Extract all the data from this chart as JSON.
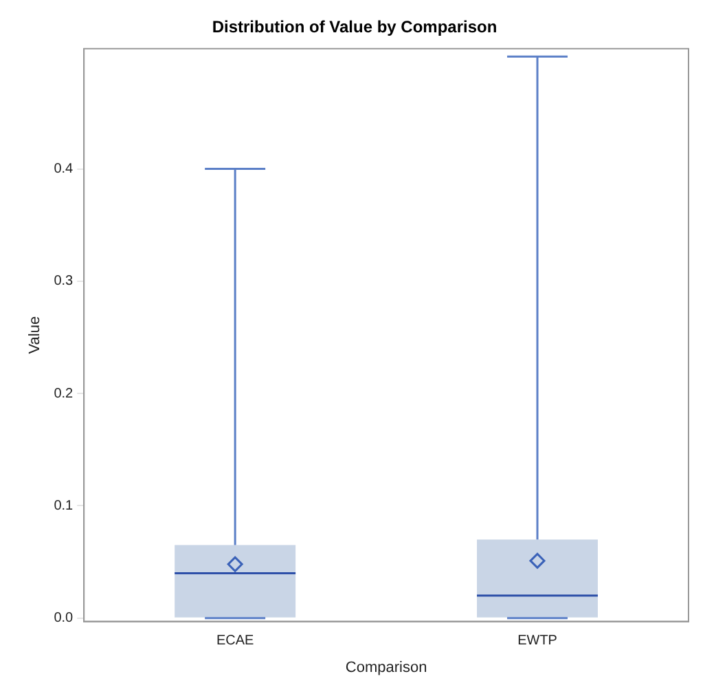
{
  "chart_data": {
    "type": "box",
    "title": "Distribution of Value by Comparison",
    "xlabel": "Comparison",
    "ylabel": "Value",
    "categories": [
      "ECAE",
      "EWTP"
    ],
    "boxes": [
      {
        "low": 0,
        "q1": 0,
        "median": 0.04,
        "q3": 0.065,
        "high": 0.4,
        "mean": 0.048
      },
      {
        "low": 0,
        "q1": 0,
        "median": 0.02,
        "q3": 0.07,
        "high": 0.5,
        "mean": 0.051
      }
    ],
    "color": "#c9d5e6",
    "marker": "diamond",
    "grid": false,
    "legend": false,
    "ylim": [
      -0.003,
      0.507
    ],
    "yticks": [
      {
        "value": 0,
        "label": "0.0"
      },
      0.1,
      0.2,
      0.3,
      0.4
    ]
  }
}
